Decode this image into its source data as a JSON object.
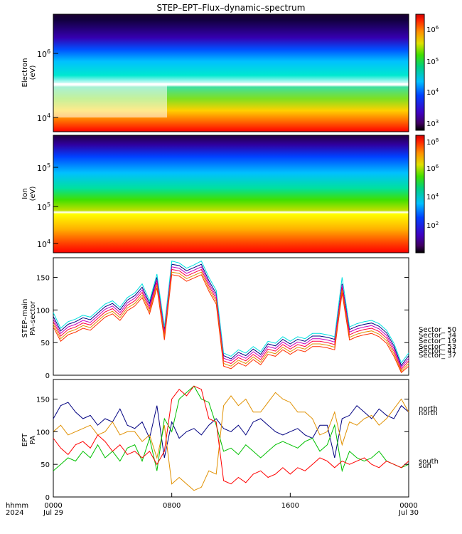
{
  "title": "STEP–EPT–Flux–dynamic–spectrum",
  "colors": {
    "sector_50": "#00e0e0",
    "sector_34": "#000080",
    "sector_19": "#c000c0",
    "sector_53": "#ff0040",
    "sector_41": "#e09000",
    "sector_37": "#ff3000",
    "north_sun": "#e09000",
    "north": "#000080",
    "south": "#00c000",
    "south_sun": "#ff0000"
  },
  "chart_data": [
    {
      "type": "heatmap",
      "ylabel": [
        "Electron",
        "(eV)"
      ],
      "y_scale": "log",
      "y_tick_labels": [
        "10",
        "10"
      ],
      "y_tick_exponents": [
        "6",
        "4"
      ],
      "colorbar": {
        "scale": "log",
        "tick_labels": [
          "10",
          "10",
          "10",
          "10"
        ],
        "tick_exponents": [
          "6",
          "5",
          "4",
          "3"
        ]
      }
    },
    {
      "type": "heatmap",
      "ylabel": [
        "Ion",
        "(eV)"
      ],
      "y_scale": "log",
      "y_tick_labels": [
        "10",
        "10",
        "10"
      ],
      "y_tick_exponents": [
        "5",
        "5",
        "4"
      ],
      "colorbar": {
        "scale": "log",
        "tick_labels": [
          "10",
          "10",
          "10",
          "10"
        ],
        "tick_exponents": [
          "8",
          "6",
          "4",
          "2"
        ]
      }
    },
    {
      "type": "line",
      "ylabel": [
        "STEP–main",
        "PA–sector"
      ],
      "ylim": [
        0,
        180
      ],
      "y_ticks": [
        0,
        50,
        100,
        150
      ],
      "legend_placement": "right",
      "legend": [
        {
          "label": "Sector_ 50",
          "color": "#00e0e0"
        },
        {
          "label": "Sector_ 34",
          "color": "#000080"
        },
        {
          "label": "Sector_ 19",
          "color": "#c000c0"
        },
        {
          "label": "Sector_ 53",
          "color": "#ff0040"
        },
        {
          "label": "Sector_ 41",
          "color": "#e09000"
        },
        {
          "label": "Sector_ 37",
          "color": "#ff3000"
        }
      ],
      "x_hours": [
        0,
        0.5,
        1,
        1.5,
        2,
        2.5,
        3,
        3.5,
        4,
        4.5,
        5,
        5.5,
        6,
        6.5,
        7,
        7.5,
        8,
        8.5,
        9,
        9.5,
        10,
        10.5,
        11,
        11.5,
        12,
        12.5,
        13,
        13.5,
        14,
        14.5,
        15,
        15.5,
        16,
        16.5,
        17,
        17.5,
        18,
        18.5,
        19,
        19.5,
        20,
        20.5,
        21,
        21.5,
        22,
        22.5,
        23,
        23.5,
        24
      ],
      "series": [
        {
          "color": "#000080",
          "values": [
            90,
            68,
            78,
            82,
            88,
            85,
            95,
            105,
            110,
            100,
            115,
            122,
            135,
            110,
            150,
            70,
            170,
            168,
            160,
            165,
            170,
            145,
            125,
            30,
            25,
            35,
            30,
            40,
            32,
            48,
            45,
            55,
            48,
            55,
            52,
            60,
            60,
            58,
            55,
            140,
            70,
            75,
            78,
            80,
            75,
            65,
            45,
            15,
            30
          ]
        },
        {
          "color": "#00e0e0",
          "values": [
            96,
            72,
            82,
            86,
            92,
            89,
            99,
            109,
            114,
            104,
            119,
            126,
            140,
            114,
            155,
            74,
            175,
            172,
            164,
            169,
            175,
            150,
            130,
            34,
            29,
            39,
            34,
            44,
            36,
            52,
            49,
            59,
            52,
            59,
            56,
            64,
            64,
            62,
            59,
            150,
            74,
            79,
            82,
            84,
            79,
            69,
            49,
            19,
            34
          ]
        },
        {
          "color": "#c000c0",
          "values": [
            86,
            64,
            74,
            78,
            84,
            81,
            91,
            101,
            106,
            96,
            111,
            118,
            131,
            106,
            146,
            66,
            166,
            164,
            156,
            161,
            166,
            141,
            121,
            26,
            22,
            31,
            26,
            36,
            28,
            44,
            41,
            51,
            44,
            51,
            48,
            56,
            56,
            54,
            51,
            138,
            66,
            71,
            74,
            76,
            71,
            61,
            41,
            12,
            26
          ]
        },
        {
          "color": "#ff0040",
          "values": [
            82,
            60,
            70,
            74,
            80,
            77,
            87,
            97,
            102,
            92,
            107,
            114,
            127,
            102,
            142,
            62,
            162,
            160,
            152,
            157,
            162,
            137,
            117,
            22,
            18,
            27,
            22,
            32,
            24,
            40,
            37,
            47,
            40,
            47,
            44,
            52,
            52,
            50,
            47,
            134,
            62,
            67,
            70,
            72,
            67,
            57,
            37,
            9,
            22
          ]
        },
        {
          "color": "#e09000",
          "values": [
            78,
            56,
            66,
            70,
            76,
            73,
            83,
            93,
            98,
            88,
            103,
            110,
            123,
            98,
            138,
            58,
            158,
            156,
            148,
            153,
            158,
            133,
            113,
            18,
            14,
            23,
            18,
            28,
            20,
            36,
            33,
            43,
            36,
            43,
            40,
            48,
            48,
            46,
            43,
            130,
            58,
            63,
            66,
            68,
            63,
            53,
            33,
            6,
            18
          ]
        },
        {
          "color": "#ff3000",
          "values": [
            74,
            52,
            62,
            66,
            72,
            69,
            79,
            89,
            94,
            84,
            99,
            106,
            119,
            94,
            134,
            54,
            154,
            152,
            144,
            149,
            154,
            129,
            109,
            14,
            10,
            19,
            14,
            24,
            16,
            32,
            29,
            39,
            32,
            39,
            36,
            44,
            44,
            42,
            39,
            126,
            54,
            59,
            62,
            64,
            59,
            49,
            29,
            4,
            14
          ]
        }
      ]
    },
    {
      "type": "line",
      "ylabel": [
        "EPT",
        "PA"
      ],
      "ylim": [
        0,
        180
      ],
      "y_ticks": [
        0,
        50,
        100,
        150
      ],
      "legend_placement": "right",
      "legend": [
        {
          "label": "north",
          "color": "#e09000"
        },
        {
          "label": "north",
          "color": "#000080"
        },
        {
          "label": "south",
          "color": "#00c000"
        },
        {
          "label": "sun",
          "color": "#ff0000"
        }
      ],
      "x_hours": [
        0,
        0.5,
        1,
        1.5,
        2,
        2.5,
        3,
        3.5,
        4,
        4.5,
        5,
        5.5,
        6,
        6.5,
        7,
        7.5,
        8,
        8.5,
        9,
        9.5,
        10,
        10.5,
        11,
        11.5,
        12,
        12.5,
        13,
        13.5,
        14,
        14.5,
        15,
        15.5,
        16,
        16.5,
        17,
        17.5,
        18,
        18.5,
        19,
        19.5,
        20,
        20.5,
        21,
        21.5,
        22,
        22.5,
        23,
        23.5,
        24
      ],
      "x_tick_labels": [
        "0000",
        "0800",
        "1600",
        "0000"
      ],
      "x_tick_hours": [
        0,
        8,
        16,
        24
      ],
      "x_sublabels": [
        "hhmm",
        "2024"
      ],
      "x_date_labels": [
        "Jul 29",
        "Jul 30"
      ],
      "series": [
        {
          "color": "#000080",
          "values": [
            120,
            140,
            145,
            130,
            120,
            125,
            110,
            120,
            115,
            135,
            110,
            105,
            115,
            90,
            140,
            60,
            115,
            90,
            100,
            105,
            95,
            110,
            120,
            105,
            100,
            110,
            95,
            115,
            120,
            110,
            100,
            95,
            100,
            105,
            95,
            90,
            110,
            110,
            60,
            120,
            125,
            140,
            130,
            120,
            135,
            125,
            120,
            140,
            130
          ]
        },
        {
          "color": "#e09000",
          "values": [
            100,
            110,
            95,
            100,
            105,
            110,
            95,
            100,
            115,
            95,
            100,
            100,
            85,
            95,
            60,
            110,
            20,
            30,
            20,
            10,
            15,
            40,
            35,
            140,
            155,
            140,
            150,
            130,
            130,
            145,
            160,
            150,
            145,
            130,
            130,
            120,
            95,
            100,
            130,
            80,
            115,
            110,
            120,
            125,
            110,
            120,
            135,
            150,
            130
          ]
        },
        {
          "color": "#00c000",
          "values": [
            40,
            50,
            60,
            55,
            70,
            60,
            80,
            60,
            70,
            55,
            75,
            80,
            55,
            90,
            40,
            120,
            100,
            150,
            160,
            170,
            150,
            145,
            110,
            70,
            75,
            65,
            80,
            70,
            60,
            70,
            80,
            85,
            80,
            75,
            85,
            90,
            70,
            80,
            110,
            40,
            70,
            60,
            55,
            60,
            70,
            55,
            50,
            45,
            50
          ]
        },
        {
          "color": "#ff0000",
          "values": [
            90,
            75,
            65,
            80,
            85,
            75,
            95,
            85,
            70,
            80,
            65,
            70,
            60,
            70,
            50,
            70,
            150,
            165,
            155,
            170,
            165,
            120,
            115,
            25,
            20,
            30,
            22,
            35,
            40,
            30,
            35,
            45,
            35,
            45,
            40,
            50,
            60,
            55,
            45,
            55,
            50,
            55,
            60,
            50,
            45,
            55,
            50,
            45,
            55
          ]
        }
      ]
    }
  ]
}
